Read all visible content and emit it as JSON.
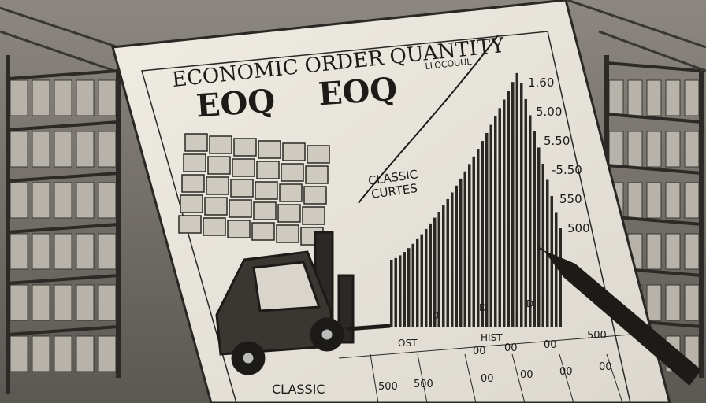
{
  "title": "ECONOMIC ORDER QUANTITY",
  "headings": [
    "EOQ",
    "EOQ"
  ],
  "chart_corner_label": "LLOCOUUL",
  "annotation": [
    "CLASSIC",
    "CURTES"
  ],
  "axis_labels": [
    "1.60",
    "5.00",
    "5.50",
    "-5.50",
    "550",
    "500"
  ],
  "x_labels": [
    "D",
    "D",
    "D",
    "OST",
    "HIST"
  ],
  "footer": "CLASSIC",
  "table": {
    "rows": [
      [
        "500",
        "500"
      ],
      [
        "00",
        "00",
        "00",
        "500"
      ],
      [
        "00",
        "00",
        "00",
        "00"
      ]
    ]
  }
}
